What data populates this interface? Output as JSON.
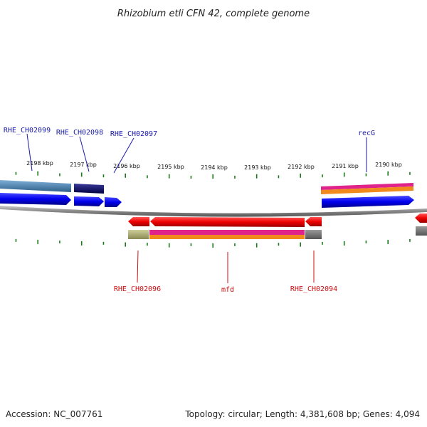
{
  "title": "Rhizobium etli CFN 42, complete genome",
  "footer": {
    "accession": "Accession: NC_007761",
    "summary": "Topology: circular; Length: 4,381,608 bp; Genes: 4,094"
  },
  "scale": {
    "ticks": [
      "2198 kbp",
      "2197 kbp",
      "2196 kbp",
      "2195 kbp",
      "2194 kbp",
      "2193 kbp",
      "2192 kbp",
      "2191 kbp",
      "2190 kbp"
    ]
  },
  "genes": {
    "forward": [
      "RHE_CH02099",
      "RHE_CH02098",
      "RHE_CH02097",
      "recG"
    ],
    "reverse": [
      "RHE_CH02096",
      "mfd",
      "RHE_CH02094"
    ]
  },
  "colors": {
    "forward_label": "#1a1aaa",
    "reverse_label": "#cc1111",
    "forward_cds": "#0a0aee",
    "reverse_cds": "#ee0000",
    "tick": "#1a7a1a",
    "backbone": "#888888"
  }
}
